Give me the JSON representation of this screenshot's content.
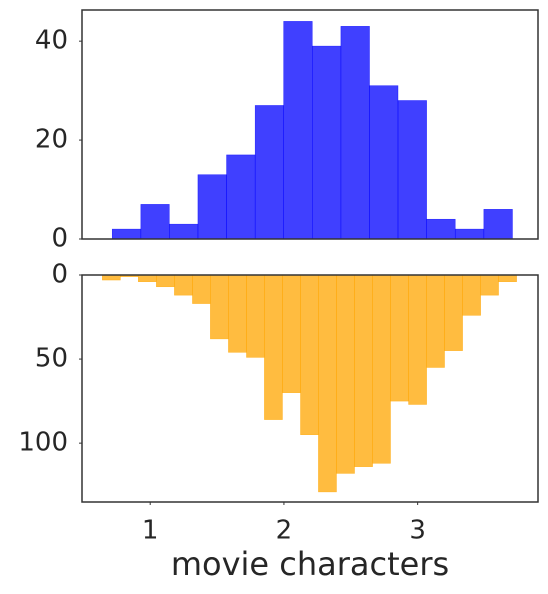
{
  "chart_data": [
    {
      "type": "histogram",
      "color": "#0000ff",
      "bins": [
        0.716,
        0.93,
        1.143,
        1.357,
        1.571,
        1.785,
        1.998,
        2.212,
        2.426,
        2.64,
        2.853,
        3.067,
        3.281,
        3.495,
        3.709
      ],
      "values": [
        2,
        7,
        3,
        13,
        17,
        27,
        44,
        39,
        43,
        31,
        28,
        4,
        2,
        6
      ],
      "xlim": [
        0.49,
        3.9
      ],
      "ylim": [
        0,
        46.3
      ],
      "yticks": [
        0,
        20,
        40
      ],
      "y_inverted": false
    },
    {
      "type": "histogram",
      "color": "#ffa500",
      "xlabel": "movie characters",
      "bins": [
        0.642,
        0.777,
        0.911,
        1.046,
        1.181,
        1.316,
        1.45,
        1.585,
        1.72,
        1.854,
        1.989,
        2.124,
        2.258,
        2.393,
        2.528,
        2.663,
        2.797,
        2.932,
        3.067,
        3.201,
        3.336,
        3.471,
        3.605,
        3.74
      ],
      "values": [
        3,
        1,
        4,
        7,
        12,
        17,
        38,
        46,
        49,
        86,
        70,
        95,
        129,
        118,
        114,
        112,
        75,
        77,
        55,
        45,
        24,
        12,
        4
      ],
      "xlim": [
        0.49,
        3.9
      ],
      "xticks": [
        1,
        2,
        3
      ],
      "ylim": [
        0,
        135
      ],
      "yticks": [
        0,
        50,
        100
      ],
      "y_inverted": true
    }
  ]
}
